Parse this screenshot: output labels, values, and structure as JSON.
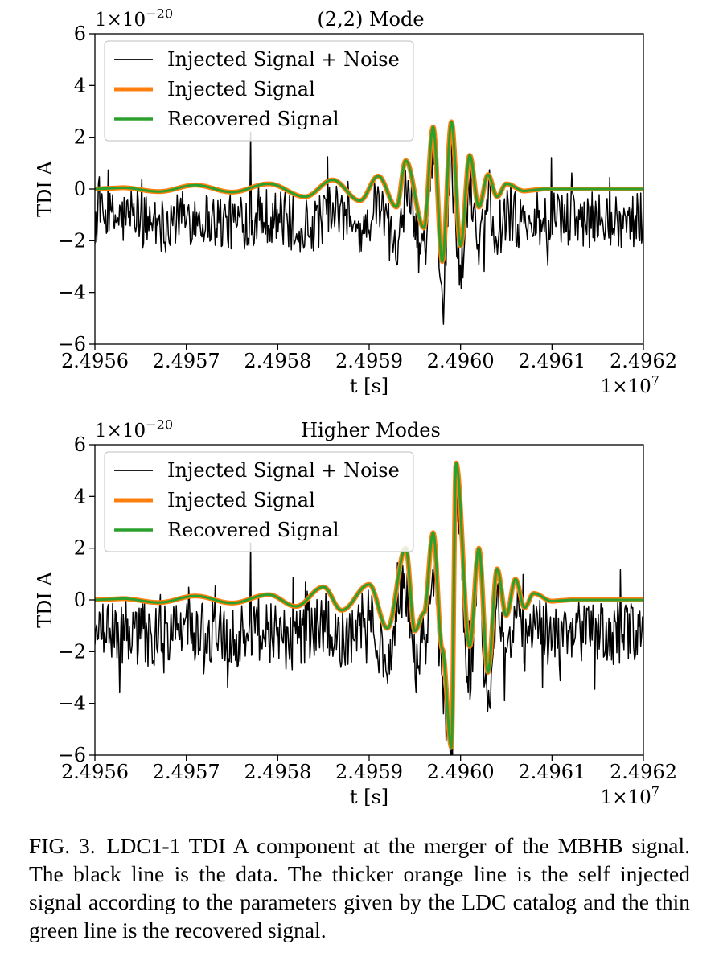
{
  "figure": {
    "caption_label": "FIG. 3.",
    "caption_text": "LDC1-1 TDI A component at the merger of the MBHB signal. The black line is the data. The thicker orange line is the self injected signal according to the parameters given by the LDC catalog and the thin green line is the recovered signal."
  },
  "colors": {
    "noise": "#000000",
    "injected": "#ff7f0e",
    "recovered": "#2ca02c"
  },
  "chart_data": [
    {
      "type": "line",
      "title": "(2,2) Mode",
      "xlabel": "t [s]",
      "ylabel": "TDI A",
      "x_offset_label": "1×10^7",
      "y_offset_label": "1×10^−20",
      "xlim": [
        2.4956,
        2.4962
      ],
      "ylim": [
        -6,
        6
      ],
      "xticks": [
        "2.4956",
        "2.4957",
        "2.4958",
        "2.4959",
        "2.4960",
        "2.4961",
        "2.4962"
      ],
      "yticks": [
        "6",
        "4",
        "2",
        "0",
        "−2",
        "−4",
        "−6"
      ],
      "legend": [
        "Injected Signal + Noise",
        "Injected Signal",
        "Recovered Signal"
      ],
      "legend_position": "upper-left",
      "series": [
        {
          "name": "Injected Signal + Noise",
          "noise_mean": -1.2,
          "noise_amp": 1.1,
          "spike": {
            "x": 2.49577,
            "y": 2.2
          },
          "samples": 620
        },
        {
          "name": "Injected Signal",
          "peaks": [
            {
              "x": 2.49563,
              "y": 0.05
            },
            {
              "x": 2.49567,
              "y": -0.1
            },
            {
              "x": 2.49571,
              "y": 0.15
            },
            {
              "x": 2.49575,
              "y": -0.12
            },
            {
              "x": 2.49579,
              "y": 0.2
            },
            {
              "x": 2.49583,
              "y": -0.3
            },
            {
              "x": 2.49586,
              "y": 0.35
            },
            {
              "x": 2.49589,
              "y": -0.45
            },
            {
              "x": 2.49591,
              "y": 0.5
            },
            {
              "x": 2.49593,
              "y": -0.7
            },
            {
              "x": 2.49594,
              "y": 1.1
            },
            {
              "x": 2.49596,
              "y": -1.5
            },
            {
              "x": 2.49597,
              "y": 2.4
            },
            {
              "x": 2.49598,
              "y": -2.8
            },
            {
              "x": 2.49599,
              "y": 2.6
            },
            {
              "x": 2.496,
              "y": -2.2
            },
            {
              "x": 2.49601,
              "y": 1.3
            },
            {
              "x": 2.49602,
              "y": -0.7
            },
            {
              "x": 2.49603,
              "y": 0.55
            },
            {
              "x": 2.49604,
              "y": -0.3
            },
            {
              "x": 2.49605,
              "y": 0.2
            },
            {
              "x": 2.49607,
              "y": -0.08
            }
          ]
        },
        {
          "name": "Recovered Signal",
          "same_as": "Injected Signal"
        }
      ]
    },
    {
      "type": "line",
      "title": "Higher Modes",
      "xlabel": "t [s]",
      "ylabel": "TDI A",
      "x_offset_label": "1×10^7",
      "y_offset_label": "1×10^−20",
      "xlim": [
        2.4956,
        2.4962
      ],
      "ylim": [
        -6,
        6
      ],
      "xticks": [
        "2.4956",
        "2.4957",
        "2.4958",
        "2.4959",
        "2.4960",
        "2.4961",
        "2.4962"
      ],
      "yticks": [
        "6",
        "4",
        "2",
        "0",
        "−2",
        "−4",
        "−6"
      ],
      "legend": [
        "Injected Signal + Noise",
        "Injected Signal",
        "Recovered Signal"
      ],
      "legend_position": "upper-left",
      "series": [
        {
          "name": "Injected Signal + Noise",
          "noise_mean": -1.3,
          "noise_amp": 1.2,
          "spike": {
            "x": 2.49577,
            "y": 2.2
          },
          "samples": 620
        },
        {
          "name": "Injected Signal",
          "peaks": [
            {
              "x": 2.49563,
              "y": 0.05
            },
            {
              "x": 2.49567,
              "y": -0.1
            },
            {
              "x": 2.49571,
              "y": 0.15
            },
            {
              "x": 2.49575,
              "y": -0.12
            },
            {
              "x": 2.49579,
              "y": 0.2
            },
            {
              "x": 2.49582,
              "y": -0.25
            },
            {
              "x": 2.49585,
              "y": 0.5
            },
            {
              "x": 2.49587,
              "y": -0.4
            },
            {
              "x": 2.4959,
              "y": 0.6
            },
            {
              "x": 2.49592,
              "y": -1.1
            },
            {
              "x": 2.49594,
              "y": 2.0
            },
            {
              "x": 2.49595,
              "y": -1.2
            },
            {
              "x": 2.49596,
              "y": -0.5
            },
            {
              "x": 2.49597,
              "y": 2.6
            },
            {
              "x": 2.49598,
              "y": -1.9
            },
            {
              "x": 2.49599,
              "y": -5.7
            },
            {
              "x": 2.495995,
              "y": 5.3
            },
            {
              "x": 2.49601,
              "y": -1.8
            },
            {
              "x": 2.49602,
              "y": 2.0
            },
            {
              "x": 2.49603,
              "y": -2.8
            },
            {
              "x": 2.49604,
              "y": 1.2
            },
            {
              "x": 2.49605,
              "y": -0.6
            },
            {
              "x": 2.49606,
              "y": 0.8
            },
            {
              "x": 2.49607,
              "y": -0.3
            },
            {
              "x": 2.49608,
              "y": 0.25
            },
            {
              "x": 2.4961,
              "y": -0.05
            }
          ]
        },
        {
          "name": "Recovered Signal",
          "same_as": "Injected Signal"
        }
      ]
    }
  ]
}
